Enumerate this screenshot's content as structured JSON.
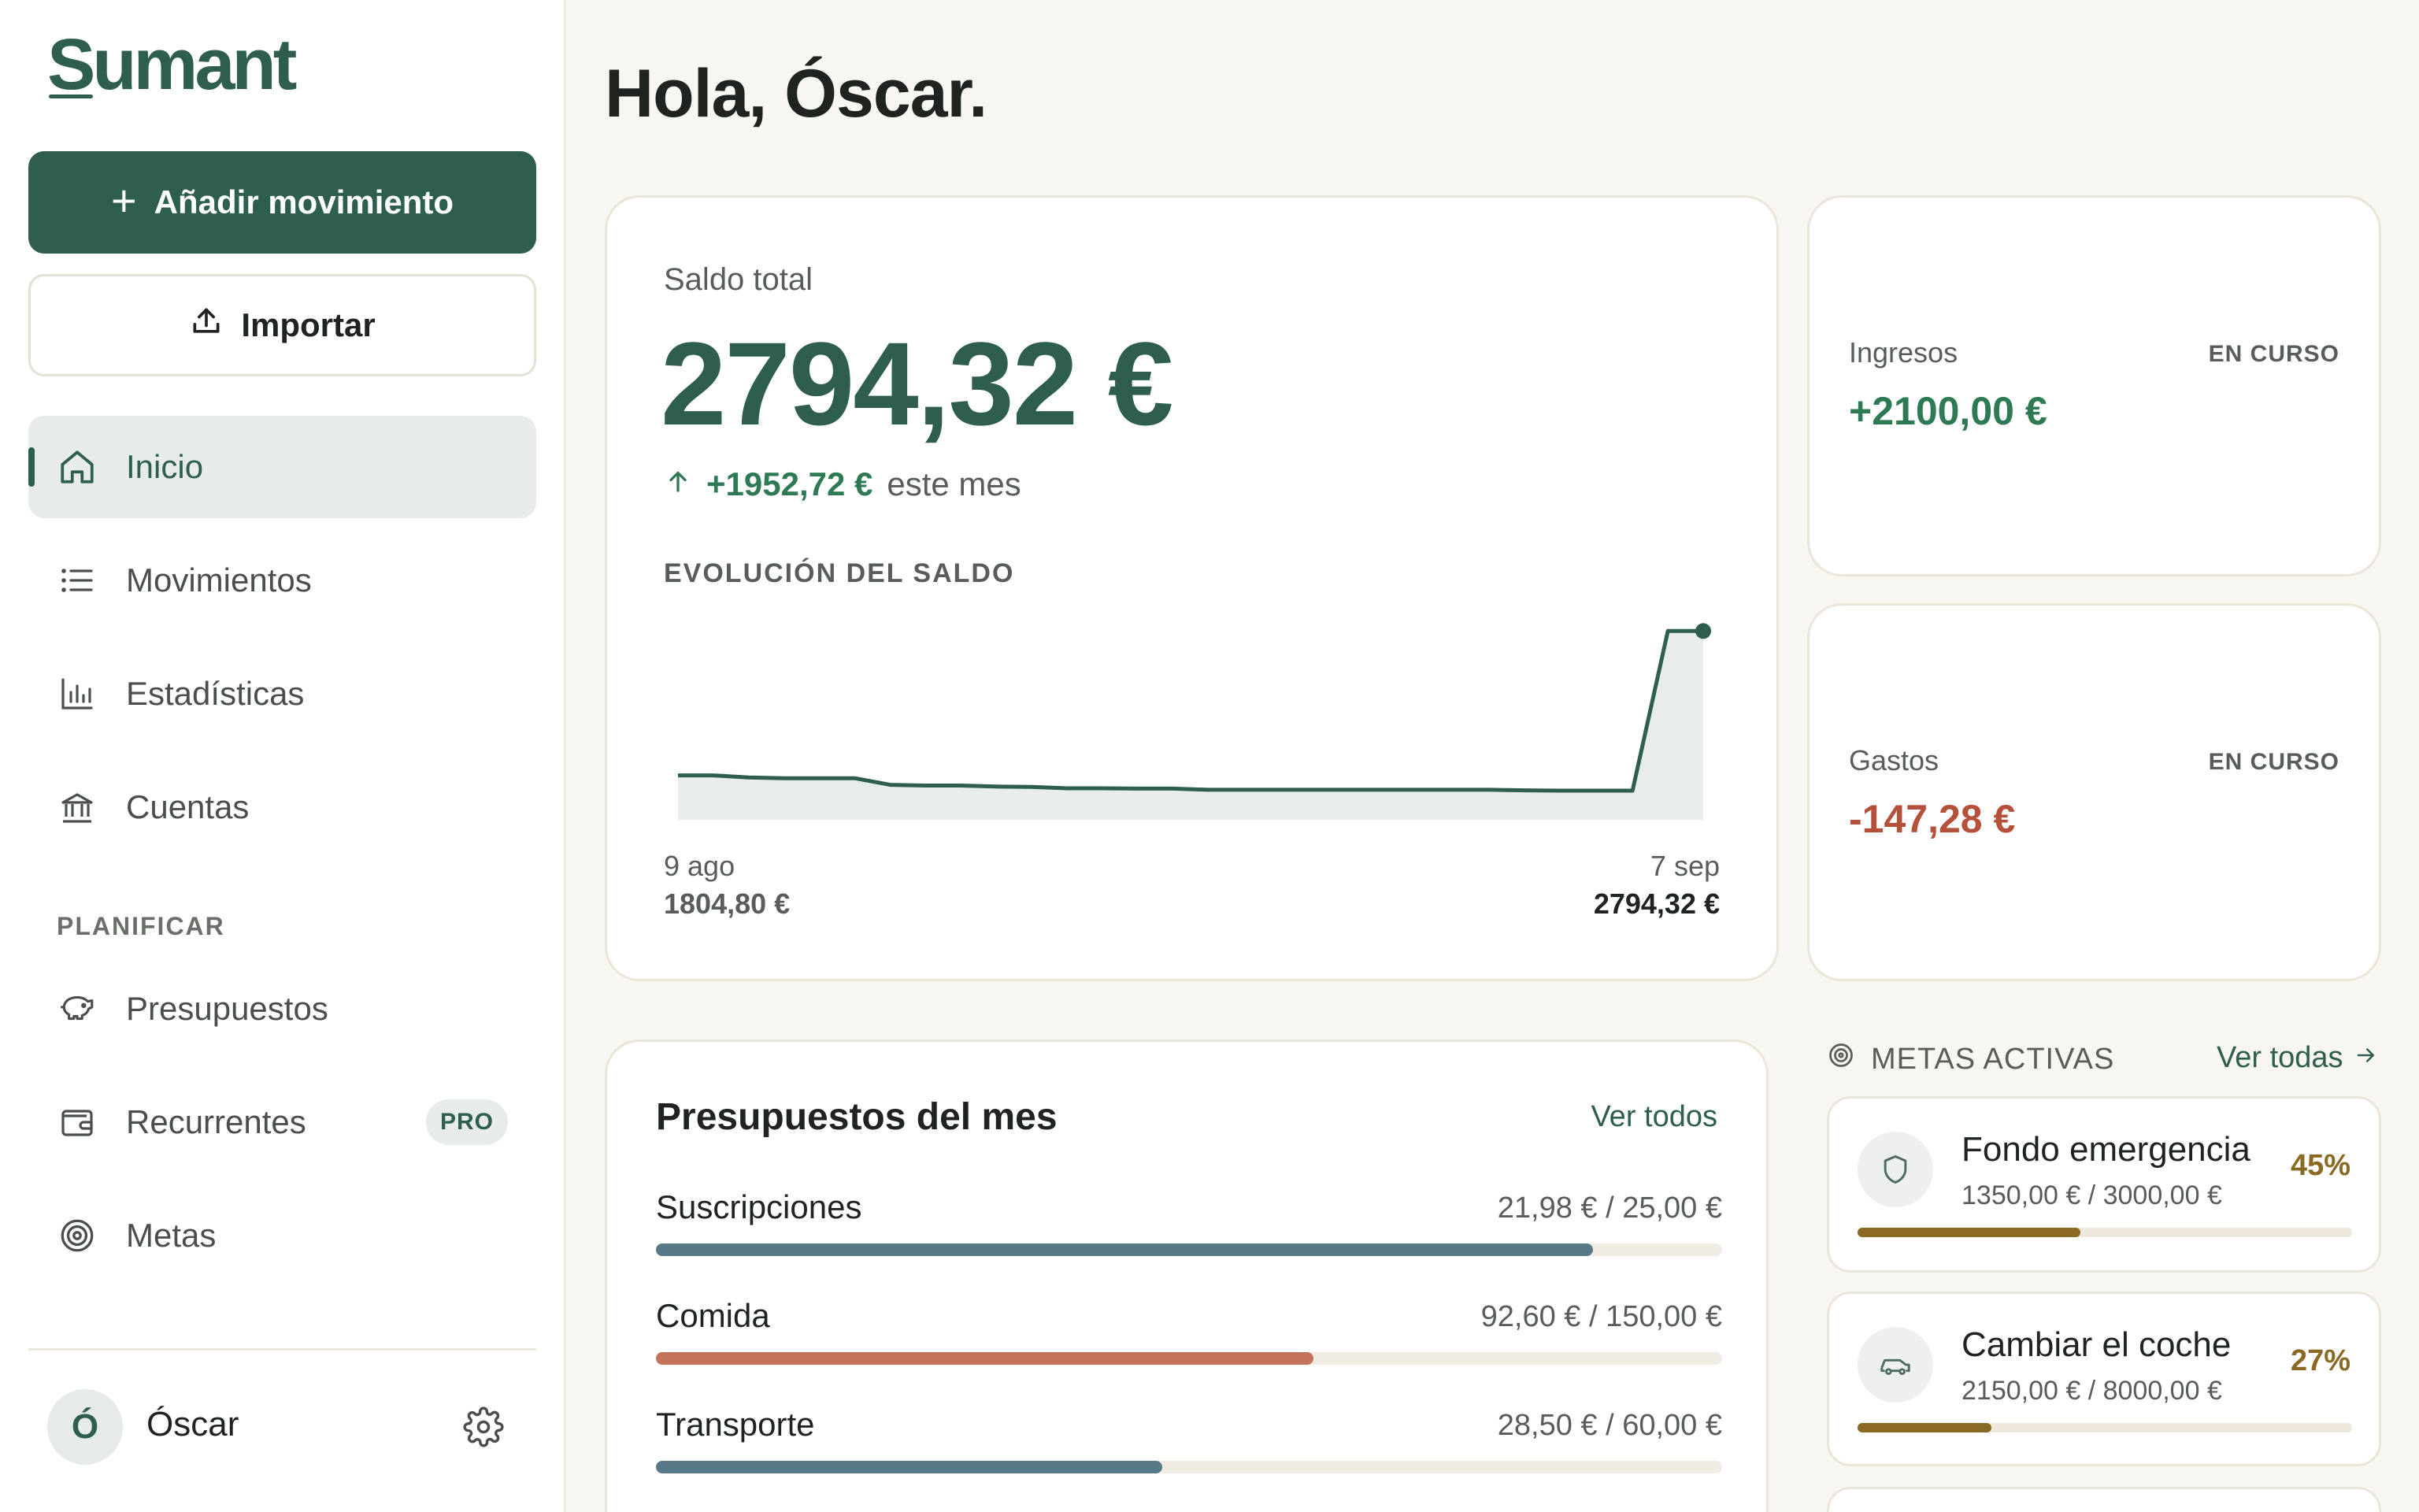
{
  "app": {
    "name": "Sumant"
  },
  "sidebar": {
    "add_label": "Añadir movimiento",
    "import_label": "Importar",
    "items": [
      {
        "label": "Inicio",
        "icon": "home-icon",
        "active": true
      },
      {
        "label": "Movimientos",
        "icon": "list-icon"
      },
      {
        "label": "Estadísticas",
        "icon": "bar-chart-icon"
      },
      {
        "label": "Cuentas",
        "icon": "bank-icon"
      }
    ],
    "section_label": "PLANIFICAR",
    "plan_items": [
      {
        "label": "Presupuestos",
        "icon": "piggy-bank-icon"
      },
      {
        "label": "Recurrentes",
        "icon": "wallet-icon",
        "badge": "PRO"
      },
      {
        "label": "Metas",
        "icon": "target-icon"
      }
    ],
    "user": {
      "initial": "Ó",
      "name": "Óscar"
    }
  },
  "main": {
    "greeting": "Hola, Óscar.",
    "balance": {
      "label": "Saldo total",
      "value": "2794,32 €",
      "delta_amount": "+1952,72 €",
      "delta_suffix": "este mes",
      "evolution_label": "EVOLUCIÓN DEL SALDO"
    },
    "income": {
      "label": "Ingresos",
      "tag": "EN CURSO",
      "value": "+2100,00 €",
      "color": "#2e7a55"
    },
    "expenses": {
      "label": "Gastos",
      "tag": "EN CURSO",
      "value": "-147,28 €",
      "color": "#b5503a"
    },
    "budgets": {
      "title": "Presupuestos del mes",
      "link": "Ver todos",
      "items": [
        {
          "name": "Suscripciones",
          "amount": "21,98 € / 25,00 €",
          "ratio": 0.879,
          "color": "#587a88"
        },
        {
          "name": "Comida",
          "amount": "92,60 € / 150,00 €",
          "ratio": 0.617,
          "color": "#c4735a"
        },
        {
          "name": "Transporte",
          "amount": "28,50 € / 60,00 €",
          "ratio": 0.475,
          "color": "#587a88"
        }
      ]
    },
    "goals": {
      "title": "METAS ACTIVAS",
      "link": "Ver todas",
      "items": [
        {
          "name": "Fondo emergencia",
          "amount": "1350,00 € / 3000,00 €",
          "pct": "45%",
          "ratio": 0.45,
          "icon": "shield-icon"
        },
        {
          "name": "Cambiar el coche",
          "amount": "2150,00 € / 8000,00 €",
          "pct": "27%",
          "ratio": 0.27,
          "icon": "car-icon"
        }
      ]
    }
  },
  "chart_data": {
    "type": "area",
    "title": "EVOLUCIÓN DEL SALDO",
    "x_start": "9 ago",
    "x_end": "7 sep",
    "start_value_label": "1804,80 €",
    "end_value_label": "2794,32 €",
    "x": [
      "9 ago",
      "10 ago",
      "11 ago",
      "12 ago",
      "13 ago",
      "14 ago",
      "15 ago",
      "16 ago",
      "17 ago",
      "18 ago",
      "19 ago",
      "20 ago",
      "21 ago",
      "22 ago",
      "23 ago",
      "24 ago",
      "25 ago",
      "26 ago",
      "27 ago",
      "28 ago",
      "29 ago",
      "30 ago",
      "31 ago",
      "1 sep",
      "2 sep",
      "3 sep",
      "4 sep",
      "5 sep",
      "6 sep",
      "7 sep"
    ],
    "values": [
      1804.8,
      1804.8,
      1790,
      1785,
      1785,
      1785,
      1740,
      1735,
      1735,
      1728,
      1725,
      1716,
      1716,
      1714,
      1714,
      1706,
      1706,
      1706,
      1706,
      1706,
      1706,
      1706,
      1706,
      1706,
      1702,
      1700,
      1700,
      1700,
      2794.32,
      2794.32
    ],
    "ylim": [
      1500,
      2850
    ],
    "line_color": "#2e5e4e",
    "fill_color": "#e9edea"
  }
}
